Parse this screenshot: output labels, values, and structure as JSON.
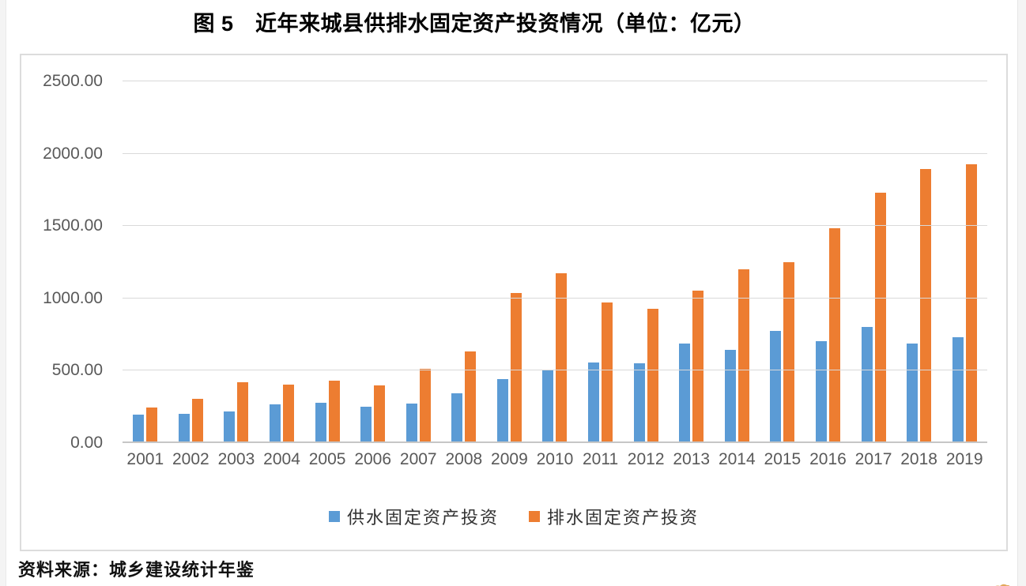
{
  "title": "图 5　近年来城县供排水固定资产投资情况（单位：亿元）",
  "source": "资料来源：城乡建设统计年鉴",
  "colors": {
    "water_supply": "#5B9BD5",
    "drainage": "#ED7D31",
    "gridline": "#D9D9D9",
    "axis_line": "#C6C6C6",
    "axis_text": "#595959",
    "chart_border": "#DCDCDC"
  },
  "chart_data": {
    "type": "bar",
    "title": "图 5　近年来城县供排水固定资产投资情况（单位：亿元）",
    "xlabel": "",
    "ylabel": "",
    "unit": "亿元",
    "categories": [
      "2001",
      "2002",
      "2003",
      "2004",
      "2005",
      "2006",
      "2007",
      "2008",
      "2009",
      "2010",
      "2011",
      "2012",
      "2013",
      "2014",
      "2015",
      "2016",
      "2017",
      "2018",
      "2019"
    ],
    "series": [
      {
        "name": "供水固定资产投资",
        "color": "#5B9BD5",
        "values": [
          195,
          200,
          220,
          270,
          280,
          250,
          275,
          345,
          445,
          510,
          555,
          550,
          690,
          645,
          775,
          705,
          805,
          690,
          730
        ]
      },
      {
        "name": "排水固定资产投资",
        "color": "#ED7D31",
        "values": [
          245,
          305,
          420,
          405,
          430,
          400,
          515,
          635,
          1035,
          1175,
          970,
          930,
          1055,
          1200,
          1250,
          1485,
          1730,
          1895,
          1925
        ]
      }
    ],
    "ylim": [
      0,
      2500
    ],
    "ytick_interval": 500,
    "ytick_labels": [
      "0.00",
      "500.00",
      "1000.00",
      "1500.00",
      "2000.00",
      "2500.00"
    ],
    "grid": true,
    "legend_position": "bottom"
  }
}
